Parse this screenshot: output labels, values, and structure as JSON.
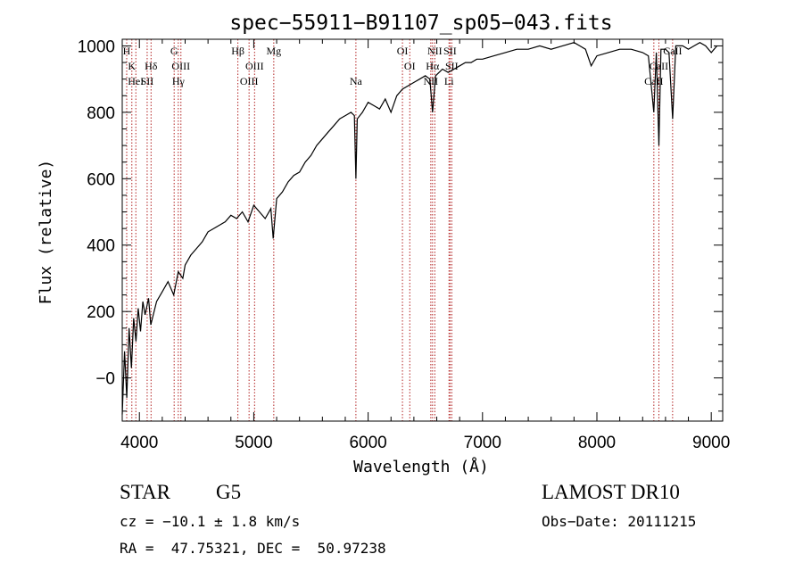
{
  "chart_data": {
    "type": "line",
    "title": "spec−55911−B91107_sp05−043.fits",
    "xlabel": "Wavelength (Å)",
    "ylabel": "Flux (relative)",
    "xlim": [
      3850,
      9100
    ],
    "ylim": [
      -130,
      1020
    ],
    "xticks": [
      4000,
      5000,
      6000,
      7000,
      8000,
      9000
    ],
    "yticks": [
      0,
      200,
      400,
      600,
      800,
      1000
    ],
    "xtick_labels": [
      "4000",
      "5000",
      "6000",
      "7000",
      "8000",
      "9000"
    ],
    "ytick_labels": [
      "−0",
      "200",
      "400",
      "600",
      "800",
      "1000"
    ],
    "grid": false,
    "line_color": "#000000",
    "marker_color": "#b22222",
    "series": [
      {
        "x": [
          3850,
          3870,
          3890,
          3910,
          3930,
          3950,
          3970,
          3990,
          4010,
          4030,
          4050,
          4080,
          4100,
          4150,
          4200,
          4250,
          4300,
          4340,
          4380,
          4400,
          4450,
          4500,
          4550,
          4600,
          4650,
          4700,
          4750,
          4800,
          4850,
          4900,
          4950,
          5000,
          5050,
          5100,
          5150,
          5170,
          5200,
          5250,
          5300,
          5350,
          5400,
          5450,
          5500,
          5550,
          5600,
          5650,
          5700,
          5750,
          5800,
          5850,
          5880,
          5893,
          5905,
          5950,
          6000,
          6050,
          6100,
          6150,
          6200,
          6250,
          6300,
          6350,
          6400,
          6450,
          6500,
          6540,
          6563,
          6590,
          6620,
          6650,
          6700,
          6750,
          6800,
          6850,
          6900,
          6950,
          7000,
          7100,
          7200,
          7300,
          7400,
          7500,
          7600,
          7700,
          7800,
          7850,
          7900,
          7950,
          8000,
          8100,
          8200,
          8300,
          8400,
          8450,
          8498,
          8520,
          8542,
          8560,
          8600,
          8630,
          8662,
          8690,
          8750,
          8800,
          8850,
          8900,
          8950,
          9000,
          9050
        ],
        "y": [
          -110,
          80,
          -60,
          150,
          30,
          180,
          110,
          210,
          140,
          230,
          190,
          240,
          160,
          230,
          260,
          290,
          250,
          320,
          300,
          340,
          370,
          390,
          410,
          440,
          450,
          460,
          470,
          490,
          480,
          500,
          470,
          520,
          500,
          480,
          510,
          420,
          540,
          560,
          590,
          610,
          620,
          650,
          670,
          700,
          720,
          740,
          760,
          780,
          790,
          800,
          790,
          600,
          780,
          800,
          830,
          820,
          810,
          840,
          800,
          850,
          870,
          880,
          890,
          900,
          910,
          900,
          800,
          910,
          920,
          930,
          920,
          930,
          940,
          950,
          950,
          960,
          960,
          970,
          980,
          990,
          990,
          1000,
          990,
          1000,
          1010,
          1000,
          990,
          940,
          970,
          980,
          990,
          990,
          980,
          970,
          800,
          980,
          700,
          990,
          990,
          980,
          780,
          1000,
          1000,
          990,
          1000,
          1010,
          1000,
          980,
          1000
        ]
      }
    ],
    "lines": [
      {
        "x": 3889,
        "name": "H",
        "row": 0
      },
      {
        "x": 3934,
        "name": "K",
        "row": 1
      },
      {
        "x": 3969,
        "name": "HeI",
        "row": 2
      },
      {
        "x": 4068,
        "name": "SII",
        "row": 2
      },
      {
        "x": 4102,
        "name": "Hδ",
        "row": 1
      },
      {
        "x": 4304,
        "name": "G",
        "row": 0
      },
      {
        "x": 4340,
        "name": "Hγ",
        "row": 2
      },
      {
        "x": 4363,
        "name": "OIII",
        "row": 1
      },
      {
        "x": 4861,
        "name": "Hβ",
        "row": 0
      },
      {
        "x": 4959,
        "name": "OIII",
        "row": 2
      },
      {
        "x": 5007,
        "name": "OIII",
        "row": 1
      },
      {
        "x": 5175,
        "name": "Mg",
        "row": 0
      },
      {
        "x": 5893,
        "name": "Na",
        "row": 2
      },
      {
        "x": 6300,
        "name": "OI",
        "row": 0
      },
      {
        "x": 6364,
        "name": "OI",
        "row": 1
      },
      {
        "x": 6548,
        "name": "NII",
        "row": 2
      },
      {
        "x": 6563,
        "name": "Hα",
        "row": 1
      },
      {
        "x": 6583,
        "name": "NII",
        "row": 0
      },
      {
        "x": 6707,
        "name": "Li",
        "row": 2
      },
      {
        "x": 6716,
        "name": "SII",
        "row": 0
      },
      {
        "x": 6731,
        "name": "SII",
        "row": 1
      },
      {
        "x": 8498,
        "name": "CaII",
        "row": 2
      },
      {
        "x": 8542,
        "name": "CaII",
        "row": 1
      },
      {
        "x": 8662,
        "name": "CaII",
        "row": 0
      }
    ]
  },
  "info": {
    "class": "STAR",
    "subclass": "G5",
    "survey": "LAMOST DR10",
    "cz": "cz = −10.1 ± 1.8 km/s",
    "obs_date": "Obs−Date: 20111215",
    "radec": "RA =  47.75321, DEC =  50.97238"
  }
}
